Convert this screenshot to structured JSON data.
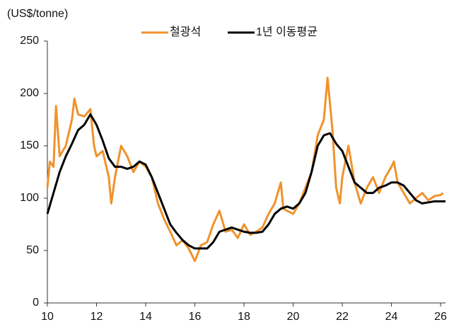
{
  "chart_data": {
    "type": "line",
    "y_axis_label": "(US$/tonne)",
    "xlim": [
      10,
      26.2
    ],
    "xticks": [
      10,
      12,
      14,
      16,
      18,
      20,
      22,
      24,
      26
    ],
    "ylim": [
      0,
      250
    ],
    "yticks": [
      0,
      50,
      100,
      150,
      200,
      250
    ],
    "legend": "top",
    "series": [
      {
        "name": "철광석",
        "color": "#f0922b",
        "width": 3,
        "x": [
          10.0,
          10.1,
          10.25,
          10.35,
          10.5,
          10.75,
          11.0,
          11.1,
          11.25,
          11.5,
          11.75,
          11.9,
          12.0,
          12.25,
          12.5,
          12.6,
          12.75,
          13.0,
          13.25,
          13.5,
          13.75,
          14.0,
          14.25,
          14.5,
          14.75,
          15.0,
          15.25,
          15.5,
          15.75,
          16.0,
          16.25,
          16.5,
          16.75,
          17.0,
          17.25,
          17.5,
          17.75,
          18.0,
          18.25,
          18.5,
          18.75,
          19.0,
          19.25,
          19.5,
          19.6,
          19.75,
          20.0,
          20.25,
          20.5,
          20.75,
          21.0,
          21.25,
          21.4,
          21.6,
          21.75,
          21.9,
          22.0,
          22.25,
          22.5,
          22.75,
          23.0,
          23.25,
          23.5,
          23.75,
          24.0,
          24.1,
          24.25,
          24.5,
          24.75,
          25.0,
          25.25,
          25.5,
          25.75,
          26.0,
          26.1
        ],
        "values": [
          110,
          135,
          130,
          188,
          140,
          150,
          175,
          195,
          180,
          178,
          185,
          150,
          140,
          145,
          120,
          95,
          120,
          150,
          140,
          125,
          135,
          130,
          120,
          95,
          80,
          68,
          55,
          60,
          52,
          40,
          55,
          58,
          75,
          88,
          68,
          70,
          62,
          75,
          65,
          68,
          72,
          85,
          95,
          115,
          90,
          88,
          85,
          95,
          110,
          125,
          160,
          175,
          215,
          165,
          110,
          95,
          120,
          150,
          115,
          95,
          110,
          120,
          105,
          120,
          130,
          135,
          115,
          105,
          95,
          100,
          105,
          98,
          102,
          103,
          105
        ]
      },
      {
        "name": "1년 이동평균",
        "color": "#000000",
        "width": 3,
        "x": [
          10.0,
          10.25,
          10.5,
          10.75,
          11.0,
          11.25,
          11.5,
          11.75,
          12.0,
          12.25,
          12.5,
          12.75,
          13.0,
          13.25,
          13.5,
          13.75,
          14.0,
          14.25,
          14.5,
          14.75,
          15.0,
          15.25,
          15.5,
          15.75,
          16.0,
          16.25,
          16.5,
          16.75,
          17.0,
          17.25,
          17.5,
          17.75,
          18.0,
          18.25,
          18.5,
          18.75,
          19.0,
          19.25,
          19.5,
          19.75,
          20.0,
          20.25,
          20.5,
          20.75,
          21.0,
          21.25,
          21.5,
          21.75,
          22.0,
          22.25,
          22.5,
          22.75,
          23.0,
          23.25,
          23.5,
          23.75,
          24.0,
          24.25,
          24.5,
          24.75,
          25.0,
          25.25,
          25.5,
          25.75,
          26.0,
          26.2
        ],
        "values": [
          85,
          105,
          125,
          140,
          152,
          165,
          170,
          180,
          170,
          155,
          138,
          130,
          130,
          128,
          130,
          135,
          132,
          120,
          105,
          90,
          75,
          67,
          60,
          55,
          52,
          52,
          52,
          58,
          68,
          70,
          72,
          70,
          68,
          67,
          67,
          68,
          75,
          85,
          90,
          92,
          90,
          95,
          105,
          125,
          150,
          160,
          162,
          152,
          145,
          130,
          115,
          110,
          105,
          105,
          110,
          112,
          115,
          115,
          112,
          105,
          98,
          95,
          96,
          97,
          97,
          97
        ]
      }
    ]
  }
}
